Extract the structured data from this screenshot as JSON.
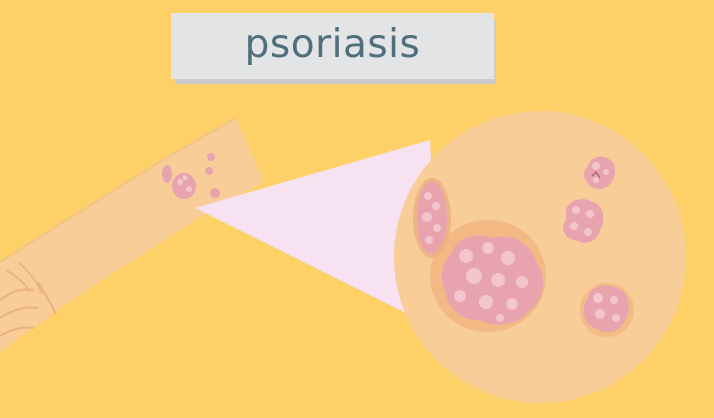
{
  "title": "psoriasis",
  "colors": {
    "background": "#fdd068",
    "banner": "#e3e4e6",
    "title_text": "#4f6f7a",
    "skin": "#f8cd98",
    "magnifier_beam": "#f7e2f1",
    "lesion": "#e7a3ae",
    "lesion_highlight": "#f3c6cd",
    "lesion_halo": "#eeae7a"
  },
  "icons": [
    "forearm-illustration",
    "magnified-skin-circle",
    "psoriasis-plaque"
  ]
}
